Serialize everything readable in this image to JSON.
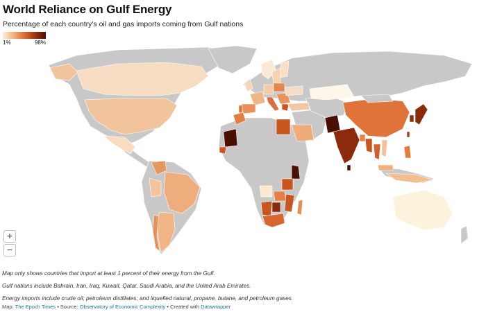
{
  "header": {
    "title": "World Reliance on Gulf Energy",
    "subtitle": "Percentage of each country's oil and gas imports coming from Gulf nations"
  },
  "legend": {
    "min_label": "1%",
    "max_label": "98%",
    "colors": [
      "#fcefd9",
      "#f5c08e",
      "#e9874e",
      "#c9551f",
      "#8c2a0c",
      "#4a0f03"
    ],
    "no_data_color": "#c8c8c8"
  },
  "controls": {
    "zoom_in_label": "+",
    "zoom_out_label": "−"
  },
  "notes": [
    "Map only shows countries that import at least 1 percent of their energy from the Gulf.",
    "Gulf nations include Bahrain, Iran, Iraq, Kuwait, Qatar, Saudi Arabia, and the United Arab Emirates.",
    "Energy imports include crude oil; petroleum distillates; and liquefied natural, propane, butane, and petroleum gases."
  ],
  "credit": {
    "map_prefix": "Map:",
    "map_source": "The Epoch Times",
    "sep1": "• Source:",
    "data_source": "Observatory of Economic Complexity",
    "sep2": "• Created with",
    "tool": "Datawrapper"
  }
}
